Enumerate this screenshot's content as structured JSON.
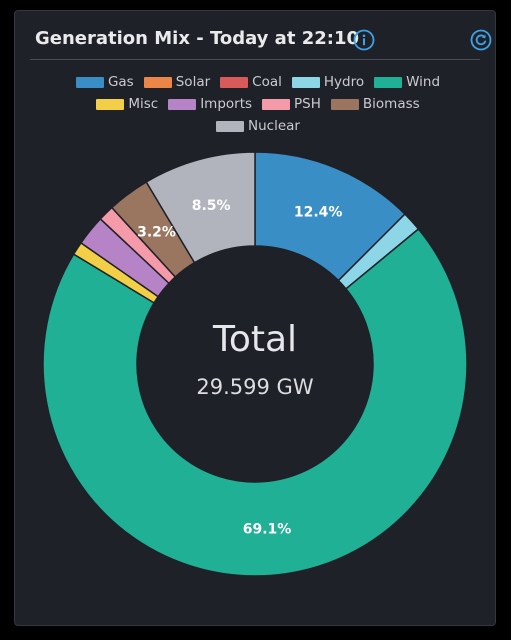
{
  "header": {
    "title": "Generation Mix - Today at 22:10"
  },
  "icons": {
    "info": "info-icon",
    "refresh": "refresh-icon"
  },
  "colors": {
    "accent": "#3da3e8",
    "card": "#1f2128",
    "hole": "#1f2128"
  },
  "center": {
    "title": "Total",
    "value": "29.599 GW"
  },
  "chart_data": {
    "type": "pie",
    "variant": "donut",
    "total_gw": 29.599,
    "start": "top",
    "series": [
      {
        "name": "Gas",
        "value": 12.4,
        "color": "#3a8ec6",
        "label": "12.4%"
      },
      {
        "name": "Solar",
        "value": 0.0,
        "color": "#ec8548",
        "label": ""
      },
      {
        "name": "Coal",
        "value": 0.0,
        "color": "#d95a5a",
        "label": ""
      },
      {
        "name": "Hydro",
        "value": 1.5,
        "color": "#8dd6e8",
        "label": ""
      },
      {
        "name": "Wind",
        "value": 69.1,
        "color": "#1fb095",
        "label": "69.1%"
      },
      {
        "name": "Misc",
        "value": 1.0,
        "color": "#f2cf47",
        "label": ""
      },
      {
        "name": "Imports",
        "value": 2.3,
        "color": "#b583c6",
        "label": ""
      },
      {
        "name": "PSH",
        "value": 1.2,
        "color": "#f59aa8",
        "label": ""
      },
      {
        "name": "Biomass",
        "value": 3.2,
        "color": "#9a7560",
        "label": "3.2%"
      },
      {
        "name": "Nuclear",
        "value": 8.5,
        "color": "#b1b4bd",
        "label": "8.5%"
      }
    ]
  }
}
